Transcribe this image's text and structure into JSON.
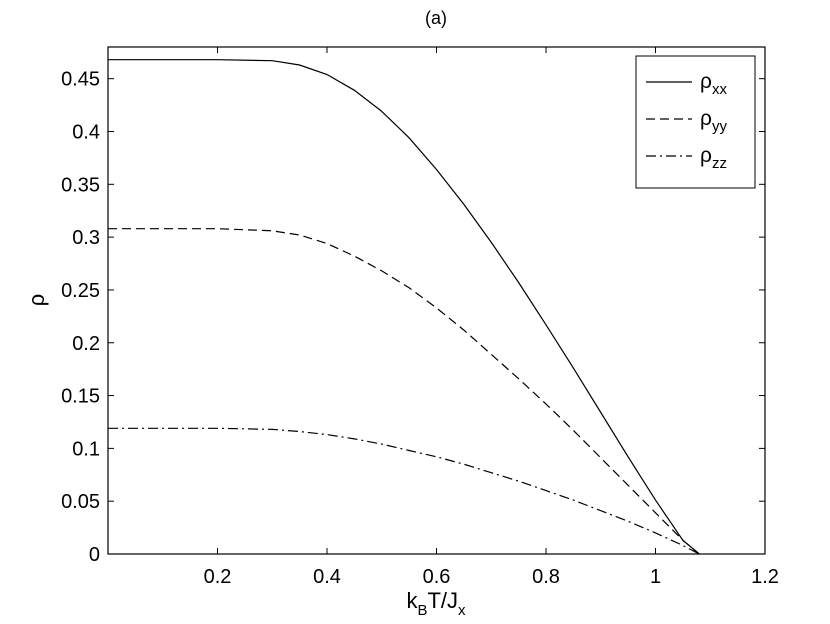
{
  "chart_data": {
    "type": "line",
    "title": "(a)",
    "xlabel": {
      "main": "k",
      "sub1": "B",
      "mid": "T/J",
      "sub2": "x"
    },
    "ylabel": "ρ",
    "xlim": [
      0,
      1.2
    ],
    "ylim": [
      0,
      0.48
    ],
    "xticks": [
      0.2,
      0.4,
      0.6,
      0.8,
      1,
      1.2
    ],
    "xtick_labels": [
      "0.2",
      "0.4",
      "0.6",
      "0.8",
      "1",
      "1.2"
    ],
    "yticks": [
      0,
      0.05,
      0.1,
      0.15,
      0.2,
      0.25,
      0.3,
      0.35,
      0.4,
      0.45
    ],
    "ytick_labels": [
      "0",
      "0.05",
      "0.1",
      "0.15",
      "0.2",
      "0.25",
      "0.3",
      "0.35",
      "0.4",
      "0.45"
    ],
    "grid": false,
    "legend_position": "top-right",
    "series": [
      {
        "name": "ρxx",
        "label_main": "ρ",
        "label_sub": "xx",
        "style": "solid",
        "x": [
          0,
          0.1,
          0.2,
          0.3,
          0.35,
          0.4,
          0.45,
          0.5,
          0.55,
          0.6,
          0.65,
          0.7,
          0.75,
          0.8,
          0.85,
          0.9,
          0.95,
          1.0,
          1.05,
          1.08
        ],
        "y": [
          0.468,
          0.468,
          0.468,
          0.467,
          0.463,
          0.454,
          0.439,
          0.419,
          0.394,
          0.364,
          0.331,
          0.295,
          0.257,
          0.217,
          0.176,
          0.134,
          0.092,
          0.051,
          0.013,
          0
        ]
      },
      {
        "name": "ρyy",
        "label_main": "ρ",
        "label_sub": "yy",
        "style": "dashed",
        "x": [
          0,
          0.1,
          0.2,
          0.3,
          0.35,
          0.4,
          0.45,
          0.5,
          0.55,
          0.6,
          0.65,
          0.7,
          0.75,
          0.8,
          0.85,
          0.9,
          0.95,
          1.0,
          1.05,
          1.08
        ],
        "y": [
          0.308,
          0.308,
          0.308,
          0.306,
          0.302,
          0.294,
          0.282,
          0.268,
          0.252,
          0.233,
          0.212,
          0.189,
          0.166,
          0.142,
          0.117,
          0.091,
          0.065,
          0.039,
          0.013,
          0
        ]
      },
      {
        "name": "ρzz",
        "label_main": "ρ",
        "label_sub": "zz",
        "style": "dashdot",
        "x": [
          0,
          0.1,
          0.2,
          0.3,
          0.35,
          0.4,
          0.45,
          0.5,
          0.55,
          0.6,
          0.65,
          0.7,
          0.75,
          0.8,
          0.85,
          0.9,
          0.95,
          1.0,
          1.05,
          1.08
        ],
        "y": [
          0.119,
          0.119,
          0.119,
          0.118,
          0.116,
          0.113,
          0.109,
          0.104,
          0.098,
          0.092,
          0.085,
          0.077,
          0.069,
          0.06,
          0.051,
          0.041,
          0.031,
          0.02,
          0.008,
          0
        ]
      }
    ]
  }
}
